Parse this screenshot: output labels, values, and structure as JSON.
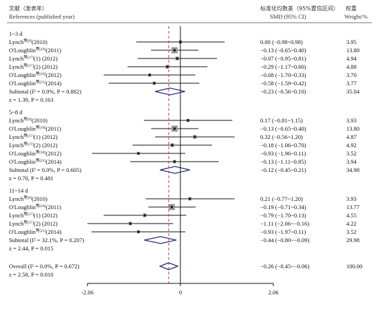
{
  "chart_data": {
    "type": "forest",
    "header": {
      "study_cn": "文献（发表年）",
      "study_en": "References (published year)",
      "effect_cn": "标准化均数差（95%置信区间）",
      "weight_cn": "权重",
      "effect_en": "SMD (95% CI)",
      "weight_en": "Weight/%"
    },
    "groups": [
      {
        "label": "1~3 d",
        "studies": [
          {
            "author": "Lynch",
            "ref": "等[9]",
            "year": "(2010)",
            "smd": 0.0,
            "lo": -0.98,
            "hi": 0.98,
            "ci": "0.00 (−0.98~0.98)",
            "weight": "3.95"
          },
          {
            "author": "O'Loughlin",
            "ref": "等[10]",
            "year": "(2011)",
            "smd": -0.13,
            "lo": -0.65,
            "hi": 0.4,
            "ci": "−0.13 (−0.65~0.40)",
            "weight": "13.80"
          },
          {
            "author": "Lynch",
            "ref": "等[17]",
            "year": "(1) (2012)",
            "smd": -0.07,
            "lo": -0.95,
            "hi": 0.81,
            "ci": "−0.07 (−0.95~0.81)",
            "weight": "4.94"
          },
          {
            "author": "Lynch",
            "ref": "等[17]",
            "year": "(2) (2012)",
            "smd": -0.29,
            "lo": -1.17,
            "hi": 0.6,
            "ci": "−0.29 (−1.17~0.60)",
            "weight": "4.88"
          },
          {
            "author": "O'Loughlin",
            "ref": "等[18]",
            "year": "(2012)",
            "smd": -0.68,
            "lo": -1.7,
            "hi": 0.33,
            "ci": "−0.68 (−1.70~0.33)",
            "weight": "3.70"
          },
          {
            "author": "O'Loughlin",
            "ref": "等[21]",
            "year": "(2014)",
            "smd": -0.58,
            "lo": -1.59,
            "hi": 0.42,
            "ci": "−0.58 (−1.59~0.42)",
            "weight": "3.77"
          }
        ],
        "subtotal": {
          "label": "Subtotal  (I² = 0.0%, P = 0.882)",
          "smd": -0.23,
          "lo": -0.56,
          "hi": 0.1,
          "ci": "−0.23 (−0.56~0.10)",
          "weight": "35.04"
        },
        "z": "z = 1.39, P = 0.163"
      },
      {
        "label": "5~8 d",
        "studies": [
          {
            "author": "Lynch",
            "ref": "等[9]",
            "year": "(2010)",
            "smd": 0.17,
            "lo": -0.81,
            "hi": 1.15,
            "ci": "0.17 (−0.81~1.15)",
            "weight": "3.93"
          },
          {
            "author": "O'Loughlin",
            "ref": "等[10]",
            "year": "(2011)",
            "smd": -0.13,
            "lo": -0.65,
            "hi": 0.4,
            "ci": "−0.13 (−0.65~0.40)",
            "weight": "13.80"
          },
          {
            "author": "Lynch",
            "ref": "等[17]",
            "year": "(1) (2012)",
            "smd": 0.32,
            "lo": -0.56,
            "hi": 1.2,
            "ci": "0.32 (−0.56~1.20)",
            "weight": "4.87"
          },
          {
            "author": "Lynch",
            "ref": "等[17]",
            "year": "(2) (2012)",
            "smd": -0.18,
            "lo": -1.06,
            "hi": 0.7,
            "ci": "−0.18 (−1.06~0.70)",
            "weight": "4.92"
          },
          {
            "author": "O'Loughlin",
            "ref": "等[18]",
            "year": "(2012)",
            "smd": -0.93,
            "lo": -1.96,
            "hi": 0.11,
            "ci": "−0.93 (−1.96~0.11)",
            "weight": "3.52"
          },
          {
            "author": "O'Loughlin",
            "ref": "等[21]",
            "year": "(2014)",
            "smd": -0.13,
            "lo": -1.11,
            "hi": 0.85,
            "ci": "−0.13 (−1.11~0.85)",
            "weight": "3.94"
          }
        ],
        "subtotal": {
          "label": "Subtotal  (I² = 0.0%, P = 0.605)",
          "smd": -0.12,
          "lo": -0.45,
          "hi": 0.21,
          "ci": "−0.12 (−0.45~0.21)",
          "weight": "34.98"
        },
        "z": "z = 0.70, P = 0.481"
      },
      {
        "label": "11~14 d",
        "studies": [
          {
            "author": "Lynch",
            "ref": "等[9]",
            "year": "(2010)",
            "smd": 0.21,
            "lo": -0.77,
            "hi": 1.2,
            "ci": "0.21 (−0.77~1.20)",
            "weight": "3.93"
          },
          {
            "author": "O'Loughlin",
            "ref": "等[10]",
            "year": "(2011)",
            "smd": -0.19,
            "lo": -0.71,
            "hi": 0.34,
            "ci": "−0.19 (−0.71~0.34)",
            "weight": "13.77"
          },
          {
            "author": "Lynch",
            "ref": "等[17]",
            "year": "(1) (2012)",
            "smd": -0.79,
            "lo": -1.7,
            "hi": 0.13,
            "ci": "−0.79 (−1.70~0.13)",
            "weight": "4.55"
          },
          {
            "author": "Lynch",
            "ref": "等[17]",
            "year": "(2) (2012)",
            "smd": -1.11,
            "lo": -2.06,
            "hi": -0.16,
            "ci": "−1.11 (−2.06~−0.16)",
            "weight": "4.22"
          },
          {
            "author": "O'Loughlin",
            "ref": "等[21]",
            "year": "(2014)",
            "smd": -0.93,
            "lo": -1.97,
            "hi": 0.11,
            "ci": "−0.93 (−1.97~0.11)",
            "weight": "3.52"
          }
        ],
        "subtotal": {
          "label": "Subtotal  (I² = 32.1%, P = 0.207)",
          "smd": -0.44,
          "lo": -0.8,
          "hi": -0.09,
          "ci": "−0.44 (−0.80~−0.09)",
          "weight": "29.98"
        },
        "z": "z = 2.44, P = 0.015"
      }
    ],
    "overall": {
      "label": "Overall  (I² = 0.0%, P = 0.672)",
      "smd": -0.26,
      "lo": -0.45,
      "hi": -0.06,
      "ci": "−0.26 (−0.45~−0.06)",
      "weight": "100.00",
      "z": "z = 2.58, P = 0.010"
    },
    "x_ticks": [
      -2.06,
      0,
      2.06
    ],
    "x_tick_labels": [
      "-2.06",
      "0",
      "2.06"
    ],
    "xlim": [
      -2.06,
      2.06
    ],
    "reference_line": 0,
    "dashed_line_at": -0.26,
    "colors": {
      "diamond": "#1f2f7a",
      "dashed": "#c0392b",
      "box": "#9a9a9a",
      "text": "#111111"
    }
  }
}
